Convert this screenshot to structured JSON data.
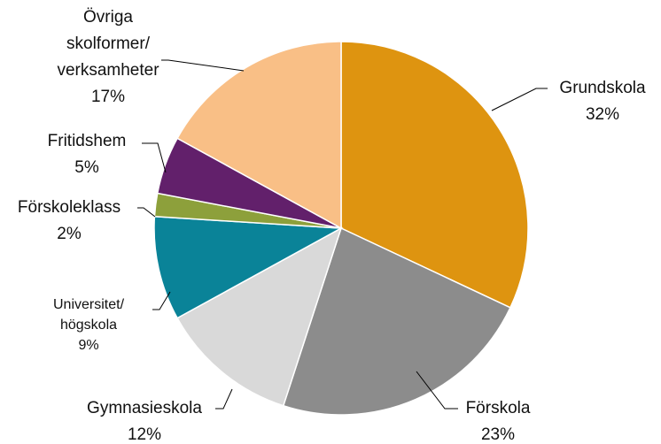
{
  "chart_data": {
    "type": "pie",
    "categories": [
      "Grundskola",
      "Förskola",
      "Gymnasieskola",
      "Universitet/\nhögskola",
      "Förskoleklass",
      "Fritidshem",
      "Övriga\nskolformer/\nverksamheter"
    ],
    "values": [
      32,
      23,
      12,
      9,
      2,
      5,
      17
    ],
    "value_labels": [
      "32%",
      "23%",
      "12%",
      "9%",
      "2%",
      "5%",
      "17%"
    ],
    "colors": [
      "#de9410",
      "#8c8c8c",
      "#d9d9d9",
      "#0a8398",
      "#8da03b",
      "#62206b",
      "#f9bf86"
    ]
  }
}
